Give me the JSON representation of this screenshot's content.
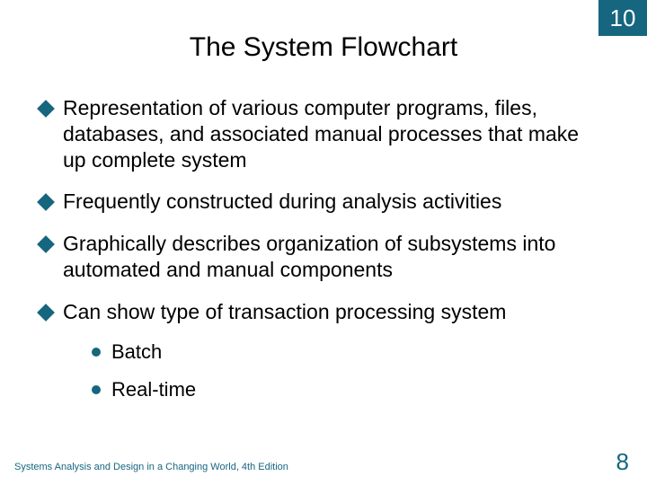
{
  "colors": {
    "accent": "#16667f",
    "background": "#ffffff",
    "text": "#000000"
  },
  "typography": {
    "title_fontsize": 30,
    "bullet_fontsize": 23,
    "subbullet_fontsize": 22,
    "footer_fontsize": 11,
    "pagenum_fontsize": 26,
    "font_family": "Arial"
  },
  "chapter_number": "10",
  "title": "The System Flowchart",
  "bullets": [
    {
      "text": "Representation of various computer programs, files, databases, and associated manual processes that make up complete system"
    },
    {
      "text": "Frequently constructed during analysis activities"
    },
    {
      "text": "Graphically describes organization of subsystems into automated and manual components"
    },
    {
      "text": "Can show type of transaction processing system",
      "sub": [
        "Batch",
        "Real-time"
      ]
    }
  ],
  "footer_text": "Systems Analysis and Design in a Changing World, 4th Edition",
  "page_number": "8"
}
